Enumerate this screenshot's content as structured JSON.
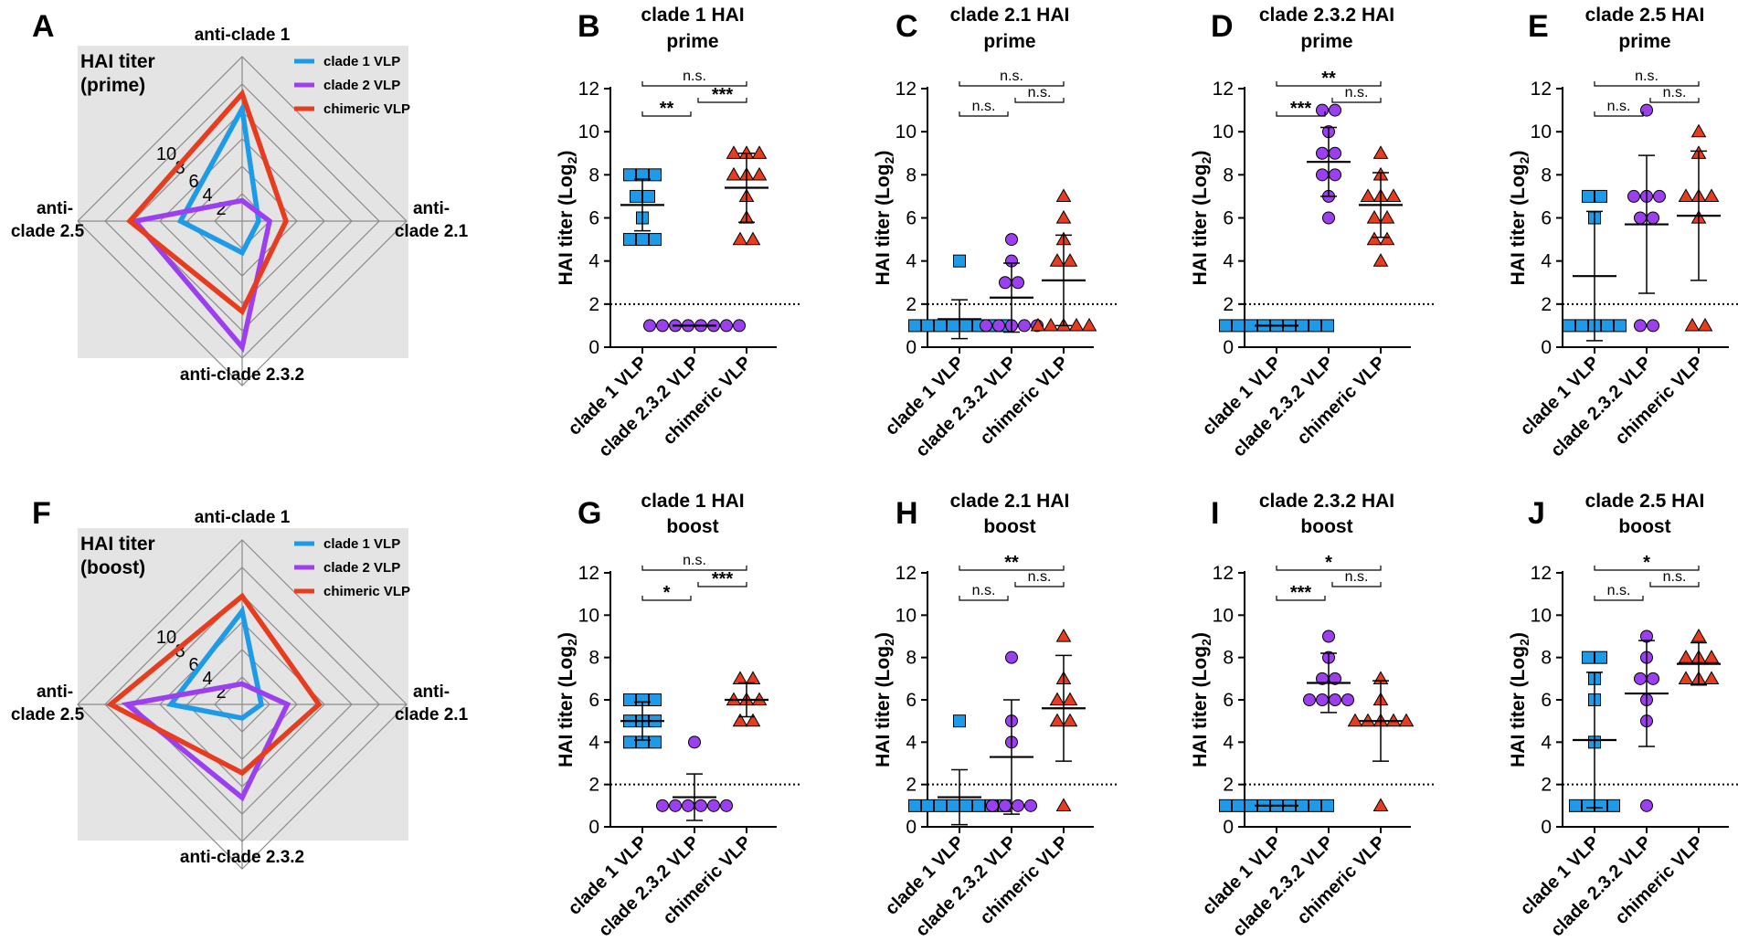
{
  "colors": {
    "clade1": "#1e9be8",
    "clade2": "#9b3ff0",
    "chimeric": "#e83c1f",
    "radar_bg": "#e4e4e4",
    "grid": "#8a8a8a"
  },
  "radar_common": {
    "axes": [
      "anti-clade 1",
      "anti-clade 2.1",
      "anti-clade 2.3.2",
      "anti-clade 2.5"
    ],
    "axis_labels": {
      "top": "anti-clade 1",
      "right_l1": "anti-",
      "right_l2": "clade 2.1",
      "bottom": "anti-clade 2.3.2",
      "left_l1": "anti-",
      "left_l2": "clade 2.5"
    },
    "ring_labels": [
      "2",
      "4",
      "6",
      "8",
      "10"
    ],
    "legend": [
      "clade 1 VLP",
      "clade 2 VLP",
      "chimeric VLP"
    ]
  },
  "chart_data": [
    {
      "panel": "A",
      "type": "radar",
      "title_l1": "HAI titer",
      "title_l2": "(prime)",
      "rmax": 12,
      "series": [
        {
          "name": "clade 1 VLP",
          "values": [
            8.2,
            1.2,
            2.3,
            4.5
          ]
        },
        {
          "name": "clade 2 VLP",
          "values": [
            1.5,
            2.0,
            9.2,
            7.8
          ]
        },
        {
          "name": "chimeric VLP",
          "values": [
            9.3,
            3.2,
            6.6,
            8.2
          ]
        }
      ]
    },
    {
      "panel": "F",
      "type": "radar",
      "title_l1": "HAI titer",
      "title_l2": "(boost)",
      "rmax": 12,
      "series": [
        {
          "name": "clade 1 VLP",
          "values": [
            6.8,
            1.4,
            1.0,
            5.2
          ]
        },
        {
          "name": "clade 2 VLP",
          "values": [
            1.5,
            3.3,
            6.8,
            8.4
          ]
        },
        {
          "name": "chimeric VLP",
          "values": [
            7.9,
            5.6,
            5.0,
            9.6
          ]
        }
      ]
    },
    {
      "panel": "B",
      "type": "scatter",
      "title_l1": "clade 1 HAI",
      "title_l2": "prime",
      "ylabel": "HAI titer (Log",
      "ylabel_sub": "2",
      "ylabel_end": ")",
      "ylim": [
        0,
        12
      ],
      "yticks": [
        "0",
        "2",
        "4",
        "6",
        "8",
        "10",
        "12"
      ],
      "threshold": 2,
      "categories": [
        "clade 1 VLP",
        "clade 2.3.2 VLP",
        "chimeric VLP"
      ],
      "groups": [
        {
          "name": "clade 1 VLP",
          "marker": "square",
          "values": [
            8,
            8,
            8,
            7,
            7,
            6,
            5,
            5,
            5
          ],
          "mean": 6.6,
          "sd": 1.2
        },
        {
          "name": "clade 2.3.2 VLP",
          "marker": "circle",
          "values": [
            1,
            1,
            1,
            1,
            1,
            1,
            1,
            1
          ],
          "mean": 1.0,
          "sd": 0
        },
        {
          "name": "chimeric VLP",
          "marker": "triangle",
          "values": [
            9,
            9,
            9,
            8,
            8,
            8,
            7,
            6,
            5,
            5
          ],
          "mean": 7.4,
          "sd": 1.6
        }
      ],
      "brackets": [
        {
          "a": 0,
          "b": 1,
          "label": "**"
        },
        {
          "a": 1,
          "b": 2,
          "label": "***"
        },
        {
          "a": 0,
          "b": 2,
          "label": "n.s."
        }
      ]
    },
    {
      "panel": "C",
      "type": "scatter",
      "title_l1": "clade 2.1 HAI",
      "title_l2": "prime",
      "ylabel": "HAI titer (Log",
      "ylabel_sub": "2",
      "ylabel_end": ")",
      "ylim": [
        0,
        12
      ],
      "yticks": [
        "0",
        "2",
        "4",
        "6",
        "8",
        "10",
        "12"
      ],
      "threshold": 2,
      "categories": [
        "clade 1 VLP",
        "clade 2.3.2 VLP",
        "chimeric VLP"
      ],
      "groups": [
        {
          "name": "clade 1 VLP",
          "marker": "square",
          "values": [
            4,
            1,
            1,
            1,
            1,
            1,
            1,
            1,
            1
          ],
          "mean": 1.3,
          "sd": 0.9
        },
        {
          "name": "clade 2.3.2 VLP",
          "marker": "circle",
          "values": [
            5,
            4,
            3,
            3,
            1,
            1,
            1,
            1,
            1
          ],
          "mean": 2.3,
          "sd": 1.6
        },
        {
          "name": "chimeric VLP",
          "marker": "triangle",
          "values": [
            7,
            6,
            5,
            4,
            4,
            1,
            1,
            1,
            1,
            1
          ],
          "mean": 3.1,
          "sd": 2.1
        }
      ],
      "brackets": [
        {
          "a": 0,
          "b": 1,
          "label": "n.s."
        },
        {
          "a": 1,
          "b": 2,
          "label": "n.s."
        },
        {
          "a": 0,
          "b": 2,
          "label": "n.s."
        }
      ]
    },
    {
      "panel": "D",
      "type": "scatter",
      "title_l1": "clade 2.3.2 HAI",
      "title_l2": "prime",
      "ylabel": "HAI titer (Log",
      "ylabel_sub": "2",
      "ylabel_end": ")",
      "ylim": [
        0,
        12
      ],
      "yticks": [
        "0",
        "2",
        "4",
        "6",
        "8",
        "10",
        "12"
      ],
      "threshold": 2,
      "categories": [
        "clade 1 VLP",
        "clade 2.3.2 VLP",
        "chimeric VLP"
      ],
      "groups": [
        {
          "name": "clade 1 VLP",
          "marker": "square",
          "values": [
            1,
            1,
            1,
            1,
            1,
            1,
            1,
            1,
            1
          ],
          "mean": 1.0,
          "sd": 0
        },
        {
          "name": "clade 2.3.2 VLP",
          "marker": "circle",
          "values": [
            11,
            11,
            10,
            9,
            9,
            8,
            8,
            7,
            6
          ],
          "mean": 8.6,
          "sd": 1.6
        },
        {
          "name": "chimeric VLP",
          "marker": "triangle",
          "values": [
            9,
            8,
            7,
            7,
            7,
            6,
            6,
            5,
            5,
            4
          ],
          "mean": 6.6,
          "sd": 1.5
        }
      ],
      "brackets": [
        {
          "a": 0,
          "b": 1,
          "label": "***"
        },
        {
          "a": 1,
          "b": 2,
          "label": "n.s."
        },
        {
          "a": 0,
          "b": 2,
          "label": "**"
        }
      ]
    },
    {
      "panel": "E",
      "type": "scatter",
      "title_l1": "clade 2.5 HAI",
      "title_l2": "prime",
      "ylabel": "HAI titer (Log",
      "ylabel_sub": "2",
      "ylabel_end": ")",
      "ylim": [
        0,
        12
      ],
      "yticks": [
        "0",
        "2",
        "4",
        "6",
        "8",
        "10",
        "12"
      ],
      "threshold": 2,
      "categories": [
        "clade 1 VLP",
        "clade 2.3.2 VLP",
        "chimeric VLP"
      ],
      "groups": [
        {
          "name": "clade 1 VLP",
          "marker": "square",
          "values": [
            7,
            7,
            6,
            1,
            1,
            1,
            1,
            1
          ],
          "mean": 3.3,
          "sd": 3.0
        },
        {
          "name": "clade 2.3.2 VLP",
          "marker": "circle",
          "values": [
            11,
            7,
            7,
            7,
            6,
            6,
            1,
            1
          ],
          "mean": 5.7,
          "sd": 3.2
        },
        {
          "name": "chimeric VLP",
          "marker": "triangle",
          "values": [
            10,
            9,
            7,
            7,
            7,
            6,
            1,
            1
          ],
          "mean": 6.1,
          "sd": 3.0
        }
      ],
      "brackets": [
        {
          "a": 0,
          "b": 1,
          "label": "n.s."
        },
        {
          "a": 1,
          "b": 2,
          "label": "n.s."
        },
        {
          "a": 0,
          "b": 2,
          "label": "n.s."
        }
      ]
    },
    {
      "panel": "G",
      "type": "scatter",
      "title_l1": "clade 1 HAI",
      "title_l2": "boost",
      "ylabel": "HAI titer (Log",
      "ylabel_sub": "2",
      "ylabel_end": ")",
      "ylim": [
        0,
        12
      ],
      "yticks": [
        "0",
        "2",
        "4",
        "6",
        "8",
        "10",
        "12"
      ],
      "threshold": 2,
      "categories": [
        "clade 1 VLP",
        "clade 2.3.2 VLP",
        "chimeric VLP"
      ],
      "groups": [
        {
          "name": "clade 1 VLP",
          "marker": "square",
          "values": [
            6,
            6,
            6,
            5,
            5,
            5,
            4,
            4,
            4
          ],
          "mean": 5.0,
          "sd": 0.9
        },
        {
          "name": "clade 2.3.2 VLP",
          "marker": "circle",
          "values": [
            4,
            1,
            1,
            1,
            1,
            1,
            1
          ],
          "mean": 1.4,
          "sd": 1.1
        },
        {
          "name": "chimeric VLP",
          "marker": "triangle",
          "values": [
            7,
            7,
            6,
            6,
            6,
            5,
            5
          ],
          "mean": 6.0,
          "sd": 0.8
        }
      ],
      "brackets": [
        {
          "a": 0,
          "b": 1,
          "label": "*"
        },
        {
          "a": 1,
          "b": 2,
          "label": "***"
        },
        {
          "a": 0,
          "b": 2,
          "label": "n.s."
        }
      ]
    },
    {
      "panel": "H",
      "type": "scatter",
      "title_l1": "clade 2.1 HAI",
      "title_l2": "boost",
      "ylabel": "HAI titer (Log",
      "ylabel_sub": "2",
      "ylabel_end": ")",
      "ylim": [
        0,
        12
      ],
      "yticks": [
        "0",
        "2",
        "4",
        "6",
        "8",
        "10",
        "12"
      ],
      "threshold": 2,
      "categories": [
        "clade 1 VLP",
        "clade 2.3.2 VLP",
        "chimeric VLP"
      ],
      "groups": [
        {
          "name": "clade 1 VLP",
          "marker": "square",
          "values": [
            5,
            1,
            1,
            1,
            1,
            1,
            1,
            1,
            1
          ],
          "mean": 1.4,
          "sd": 1.3
        },
        {
          "name": "clade 2.3.2 VLP",
          "marker": "circle",
          "values": [
            8,
            5,
            4,
            1,
            1,
            1,
            1
          ],
          "mean": 3.3,
          "sd": 2.7
        },
        {
          "name": "chimeric VLP",
          "marker": "triangle",
          "values": [
            9,
            7,
            6,
            6,
            5,
            5,
            1
          ],
          "mean": 5.6,
          "sd": 2.5
        }
      ],
      "brackets": [
        {
          "a": 0,
          "b": 1,
          "label": "n.s."
        },
        {
          "a": 1,
          "b": 2,
          "label": "n.s."
        },
        {
          "a": 0,
          "b": 2,
          "label": "**"
        }
      ]
    },
    {
      "panel": "I",
      "type": "scatter",
      "title_l1": "clade 2.3.2 HAI",
      "title_l2": "boost",
      "ylabel": "HAI titer (Log",
      "ylabel_sub": "2",
      "ylabel_end": ")",
      "ylim": [
        0,
        12
      ],
      "yticks": [
        "0",
        "2",
        "4",
        "6",
        "8",
        "10",
        "12"
      ],
      "threshold": 2,
      "categories": [
        "clade 1 VLP",
        "clade 2.3.2 VLP",
        "chimeric VLP"
      ],
      "groups": [
        {
          "name": "clade 1 VLP",
          "marker": "square",
          "values": [
            1,
            1,
            1,
            1,
            1,
            1,
            1,
            1,
            1
          ],
          "mean": 1.0,
          "sd": 0
        },
        {
          "name": "clade 2.3.2 VLP",
          "marker": "circle",
          "values": [
            9,
            8,
            7,
            7,
            6,
            6,
            6,
            6
          ],
          "mean": 6.8,
          "sd": 1.4
        },
        {
          "name": "chimeric VLP",
          "marker": "triangle",
          "values": [
            7,
            6,
            5,
            5,
            5,
            5,
            5,
            1
          ],
          "mean": 5.0,
          "sd": 1.9
        }
      ],
      "brackets": [
        {
          "a": 0,
          "b": 1,
          "label": "***"
        },
        {
          "a": 1,
          "b": 2,
          "label": "n.s."
        },
        {
          "a": 0,
          "b": 2,
          "label": "*"
        }
      ]
    },
    {
      "panel": "J",
      "type": "scatter",
      "title_l1": "clade 2.5 HAI",
      "title_l2": "boost",
      "ylabel": "HAI titer (Log",
      "ylabel_sub": "2",
      "ylabel_end": ")",
      "ylim": [
        0,
        12
      ],
      "yticks": [
        "0",
        "2",
        "4",
        "6",
        "8",
        "10",
        "12"
      ],
      "threshold": 2,
      "categories": [
        "clade 1 VLP",
        "clade 2.3.2 VLP",
        "chimeric VLP"
      ],
      "groups": [
        {
          "name": "clade 1 VLP",
          "marker": "square",
          "values": [
            8,
            8,
            7,
            6,
            4,
            1,
            1,
            1,
            1
          ],
          "mean": 4.1,
          "sd": 3.2
        },
        {
          "name": "clade 2.3.2 VLP",
          "marker": "circle",
          "values": [
            9,
            8,
            7,
            7,
            6,
            5,
            1
          ],
          "mean": 6.3,
          "sd": 2.5
        },
        {
          "name": "chimeric VLP",
          "marker": "triangle",
          "values": [
            9,
            8,
            8,
            8,
            7,
            7,
            7
          ],
          "mean": 7.7,
          "sd": 1.0
        }
      ],
      "brackets": [
        {
          "a": 0,
          "b": 1,
          "label": "n.s."
        },
        {
          "a": 1,
          "b": 2,
          "label": "n.s."
        },
        {
          "a": 0,
          "b": 2,
          "label": "*"
        }
      ]
    }
  ]
}
